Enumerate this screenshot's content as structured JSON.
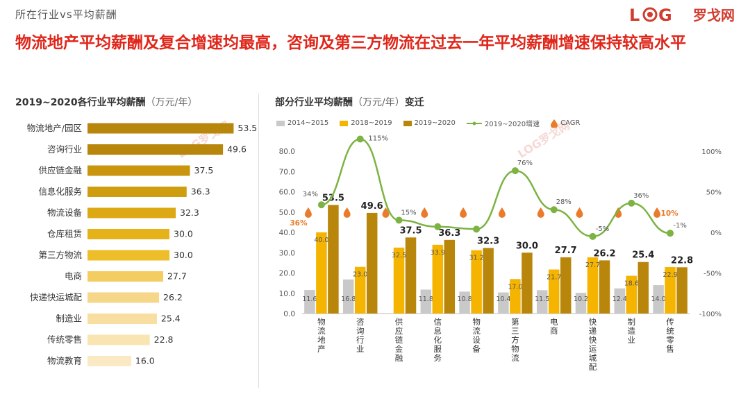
{
  "header": {
    "tag": "所在行业vs平均薪酬",
    "logo_letters": "LOG",
    "logo_cn": "罗戈网",
    "headline": "物流地产平均薪酬及复合增速均最高，咨询及第三方物流在过去一年平均薪酬增速保持较高水平"
  },
  "left_panel": {
    "title": "2019~2020各行业平均薪酬",
    "unit": "（万元/年）"
  },
  "right_panel": {
    "title": "部分行业平均薪酬",
    "unit": "（万元/年）",
    "title_suffix": "变迁"
  },
  "watermarks": [
    "LOG罗戈网",
    "LOG罗戈网"
  ],
  "colors": {
    "gray": "#c9c9c9",
    "yellow": "#f5b400",
    "brown": "#b8860b",
    "green": "#7cb342",
    "orange": "#ea7b2a",
    "left_bars": [
      "#b8860b",
      "#b8860b",
      "#c9950e",
      "#cf9e10",
      "#dca814",
      "#e6b21a",
      "#eebd2a",
      "#f3cd61",
      "#f6d688",
      "#f8dea0",
      "#f9e5b2",
      "#fae9c2"
    ]
  },
  "chart_data": [
    {
      "type": "bar",
      "orientation": "horizontal",
      "categories": [
        "物流地产/园区",
        "咨询行业",
        "供应链金融",
        "信息化服务",
        "物流设备",
        "仓库租赁",
        "第三方物流",
        "电商",
        "快递快运城配",
        "制造业",
        "传统零售",
        "物流教育"
      ],
      "values": [
        53.5,
        49.6,
        37.5,
        36.3,
        32.3,
        30.0,
        30.0,
        27.7,
        26.2,
        25.4,
        22.8,
        16.0
      ],
      "value_labels": [
        "53.5",
        "49.6",
        "37.5",
        "36.3",
        "32.3",
        "30.0",
        "30.0",
        "27.7",
        "26.2",
        "25.4",
        "22.8",
        "16.0"
      ],
      "xlim": [
        0,
        60
      ]
    },
    {
      "type": "bar",
      "categories": [
        "物流地产",
        "咨询行业",
        "供应链金融",
        "信息化服务",
        "物流设备",
        "第三方物流",
        "电商",
        "快递快运城配",
        "制造业",
        "传统零售"
      ],
      "series": [
        {
          "name": "2014~2015",
          "values": [
            11.6,
            16.8,
            null,
            11.8,
            10.8,
            10.4,
            11.5,
            10.2,
            12.4,
            14.0
          ],
          "labels": [
            "11.6",
            "16.8",
            "",
            "11.8",
            "10.8",
            "10.4",
            "11.5",
            "10.2",
            "12.4",
            "14.0"
          ]
        },
        {
          "name": "2018~2019",
          "values": [
            40.0,
            23.0,
            32.5,
            33.9,
            31.2,
            17.0,
            21.7,
            27.7,
            18.6,
            22.9
          ],
          "labels": [
            "40.0",
            "23.0",
            "32.5",
            "33.9",
            "31.2",
            "17.0",
            "21.7",
            "27.7",
            "18.6",
            "22.9"
          ]
        },
        {
          "name": "2019~2020",
          "values": [
            53.5,
            49.6,
            37.5,
            36.3,
            32.3,
            30.0,
            27.7,
            26.2,
            25.4,
            22.8
          ],
          "labels": [
            "53.5",
            "49.6",
            "37.5",
            "36.3",
            "32.3",
            "30.0",
            "27.7",
            "26.2",
            "25.4",
            "22.8"
          ]
        }
      ],
      "line_series": {
        "name": "2019~2020增速",
        "values": [
          34,
          115,
          15,
          7,
          4,
          76,
          28,
          -5,
          36,
          -1
        ],
        "labels": [
          "34%",
          "115%",
          "15%",
          "",
          "",
          "76%",
          "28%",
          "-5%",
          "36%",
          "-1%"
        ]
      },
      "cagr": {
        "name": "CAGR",
        "labels": [
          "36%",
          "",
          "",
          "",
          "",
          "",
          "",
          "",
          "",
          "10%"
        ]
      },
      "ylim": [
        0,
        80
      ],
      "yticks": [
        "0.0",
        "10.0",
        "20.0",
        "30.0",
        "40.0",
        "50.0",
        "60.0",
        "70.0",
        "80.0"
      ],
      "y2lim": [
        -100,
        100
      ],
      "y2ticks": [
        "-100%",
        "-50%",
        "0%",
        "50%",
        "100%"
      ]
    }
  ]
}
